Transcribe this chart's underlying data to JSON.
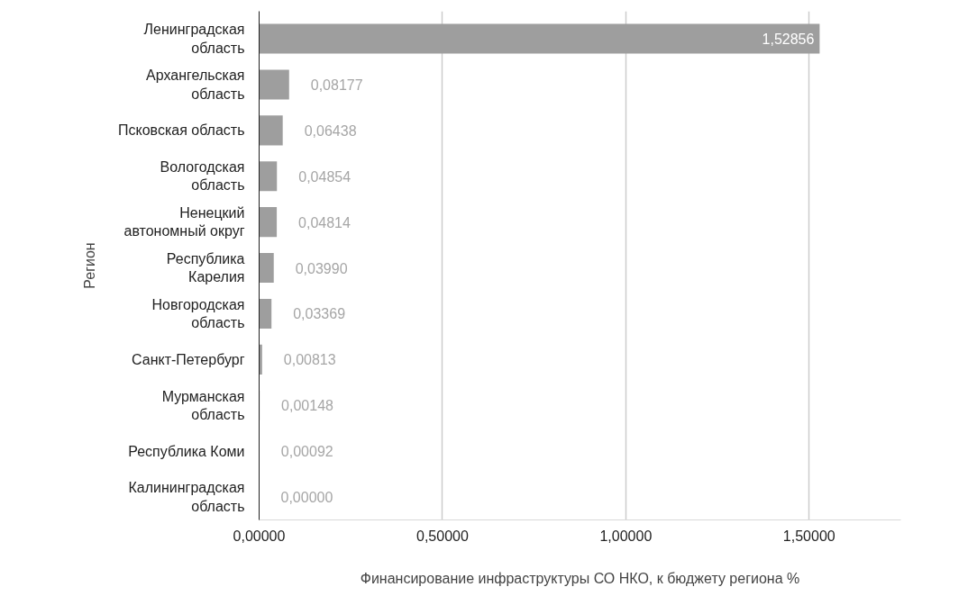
{
  "chart_data": {
    "type": "bar",
    "orientation": "horizontal",
    "xlabel": "Финансирование инфраструктуры СО НКО, к бюджету региона %",
    "ylabel": "Регион",
    "categories": [
      "Ленинградская область",
      "Архангельская область",
      "Псковская область",
      "Вологодская область",
      "Ненецкий автономный округ",
      "Республика Карелия",
      "Новгородская область",
      "Санкт-Петербург",
      "Мурманская область",
      "Республика Коми",
      "Калининградская область"
    ],
    "values": [
      1.52856,
      0.08177,
      0.06438,
      0.04854,
      0.04814,
      0.0399,
      0.03369,
      0.00813,
      0.00148,
      0.00092,
      0.0
    ],
    "value_labels": [
      "1,52856",
      "0,08177",
      "0,06438",
      "0,04854",
      "0,04814",
      "0,03990",
      "0,03369",
      "0,00813",
      "0,00148",
      "0,00092",
      "0,00000"
    ],
    "color": "#9e9e9e",
    "xlim": [
      0,
      1.75
    ],
    "xticks": [
      {
        "value": 0,
        "label": "0,00000"
      },
      {
        "value": 0.5,
        "label": "0,50000"
      },
      {
        "value": 1.0,
        "label": "1,00000"
      },
      {
        "value": 1.5,
        "label": "1,50000"
      }
    ],
    "grid": "x"
  }
}
